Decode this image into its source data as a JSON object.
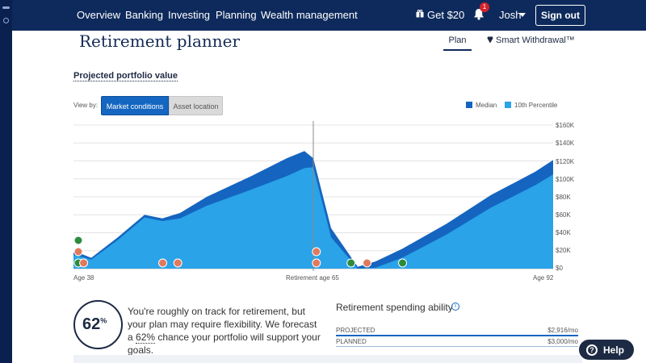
{
  "nav": {
    "links": [
      "Overview",
      "Banking",
      "Investing",
      "Planning",
      "Wealth management"
    ],
    "promo": "Get $20",
    "notifications": "1",
    "user": "Josh",
    "signout": "Sign out"
  },
  "page": {
    "title": "Retirement planner",
    "tabs": [
      "Plan",
      "Smart Withdrawal™"
    ],
    "section_title": "Projected portfolio value",
    "view_by": "View by:",
    "view_options": [
      "Market conditions",
      "Asset location"
    ],
    "selected_view": "Market conditions"
  },
  "chart_data": {
    "type": "area",
    "title": "",
    "xlabel": "",
    "ylabel": "",
    "x_tick_labels": [
      "Age 38",
      "Retirement age 65",
      "Age 92"
    ],
    "y_tick_labels": [
      "$160K",
      "$140K",
      "$120K",
      "$100K",
      "$80K",
      "$60K",
      "$40K",
      "$20K",
      "$0"
    ],
    "ylim": [
      0,
      160000
    ],
    "xlim": [
      38,
      92
    ],
    "legend": [
      "Median",
      "10th Percentile"
    ],
    "legend_position": "top-right",
    "grid": true,
    "x": [
      38,
      39,
      40,
      43,
      46,
      48,
      50,
      53,
      58,
      62,
      64,
      65,
      67,
      70,
      72,
      75,
      80,
      85,
      90,
      92
    ],
    "series": [
      {
        "name": "Median",
        "color": "#1565c0",
        "values": [
          18000,
          16000,
          12000,
          35000,
          60000,
          56000,
          62000,
          80000,
          103000,
          123000,
          131000,
          123000,
          45000,
          2000,
          8000,
          22000,
          50000,
          82000,
          108000,
          121000
        ]
      },
      {
        "name": "10th Percentile",
        "color": "#2aa3e8",
        "values": [
          15000,
          13000,
          10000,
          32000,
          57000,
          53000,
          56000,
          70000,
          88000,
          103000,
          112000,
          113000,
          35000,
          0,
          1000,
          12000,
          38000,
          68000,
          93000,
          105000
        ]
      }
    ]
  },
  "events": {
    "markers": [
      {
        "icon": "money-icon",
        "color": "#2e8b3e",
        "age": 38,
        "level": 2
      },
      {
        "icon": "gift-icon",
        "color": "#e07a5f",
        "age": 38,
        "level": 1
      },
      {
        "icon": "money-icon",
        "color": "#2e8b3e",
        "age": 38,
        "level": 0
      },
      {
        "icon": "car-icon",
        "color": "#e07a5f",
        "age": 38.6,
        "level": 0
      },
      {
        "icon": "car-icon",
        "color": "#e07a5f",
        "age": 47.5,
        "level": 0
      },
      {
        "icon": "tool-icon",
        "color": "#e07a5f",
        "age": 49.2,
        "level": 0
      },
      {
        "icon": "trophy-icon",
        "color": "#e07a5f",
        "age": 64.8,
        "level": 1
      },
      {
        "icon": "heart-icon",
        "color": "#e07a5f",
        "age": 64.8,
        "level": 0
      },
      {
        "icon": "money-icon",
        "color": "#2e8b3e",
        "age": 68.7,
        "level": 0
      },
      {
        "icon": "trophy-icon",
        "color": "#e07a5f",
        "age": 70.5,
        "level": 0
      },
      {
        "icon": "money-icon",
        "color": "#2e8b3e",
        "age": 74.5,
        "level": 0
      }
    ]
  },
  "summary": {
    "score": "62",
    "score_unit": "%",
    "text_before": "You're roughly on track for retirement, but your plan may require flexibility. We forecast a ",
    "text_link": "62%",
    "text_after": " chance your portfolio will support your goals."
  },
  "spending": {
    "title": "Retirement spending ability",
    "rows": [
      {
        "label": "PROJECTED",
        "value": "$2,916/mo",
        "color": "#1466c1"
      },
      {
        "label": "PLANNED",
        "value": "$3,000/mo",
        "color": "#9db8d8"
      }
    ]
  },
  "help": "Help"
}
